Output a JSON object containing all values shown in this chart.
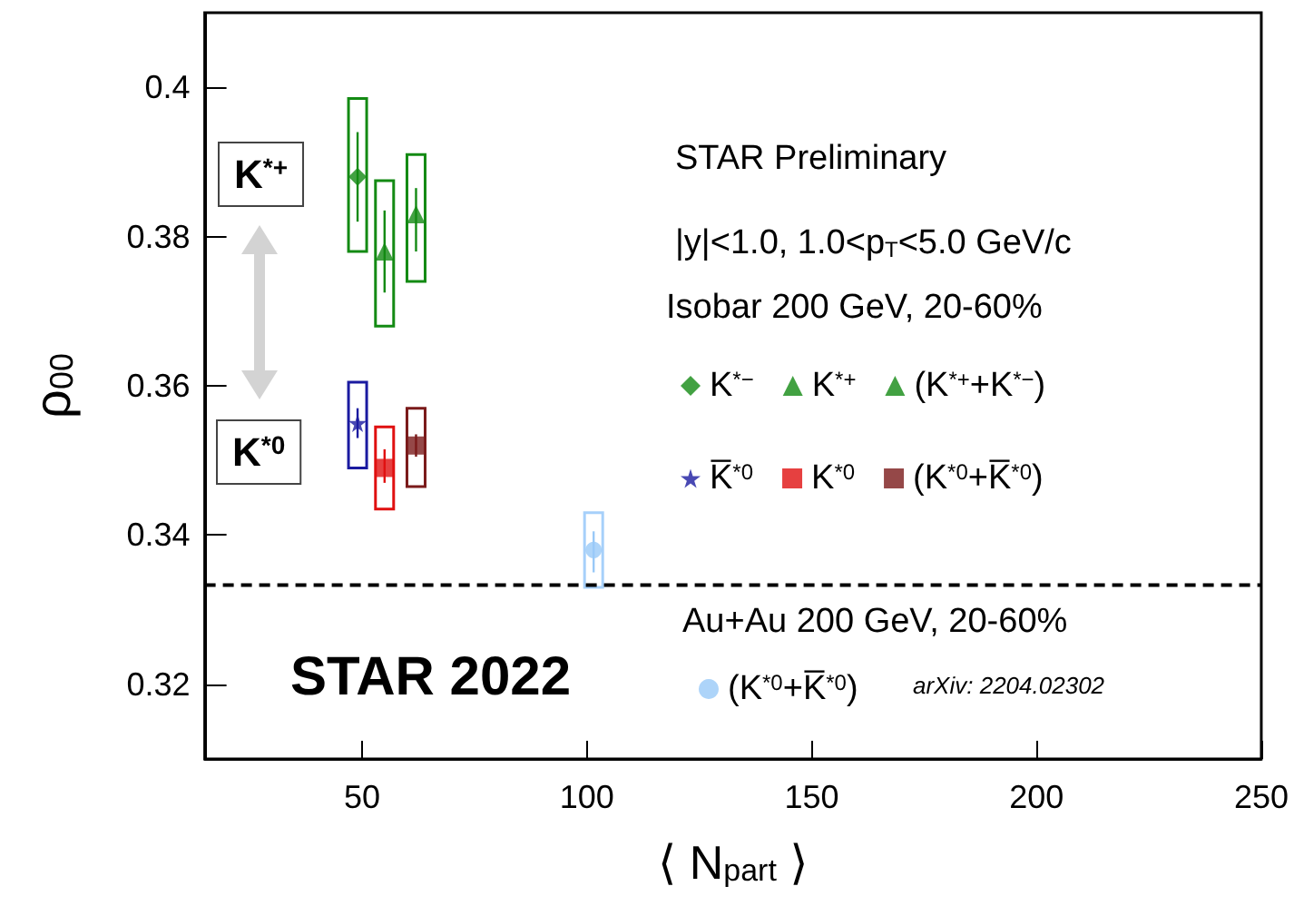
{
  "chart_data": {
    "type": "scatter",
    "xlabel": "⟨ N$_{part}$ ⟩",
    "ylabel": "ρ$_{00}$",
    "xlim": [
      15,
      250
    ],
    "xticks": [
      50,
      100,
      150,
      200,
      250
    ],
    "ylim": [
      0.31,
      0.41
    ],
    "yticks": [
      0.32,
      0.34,
      0.36,
      0.38,
      0.4
    ],
    "grid": false,
    "legend": "right",
    "annotations": [
      "STAR Preliminary",
      "|y|<1.0, 1.0<p$_{T}$<5.0 GeV/c",
      "Isobar 200 GeV, 20-60%",
      "Au+Au 200 GeV, 20-60%",
      "arXiv: 2204.02302",
      "STAR 2022",
      "K$^{*+}$",
      "K$^{*0}$"
    ],
    "ref_lines": [
      {
        "axis": "y",
        "value": 0.3333,
        "color": "#000000",
        "line_style": "dashed"
      }
    ],
    "series": [
      {
        "type": "bar",
        "color": "#138a13",
        "x": [
          49
        ],
        "base": [
          0.378
        ],
        "values": [
          0.0205
        ]
      },
      {
        "type": "bar",
        "color": "#138a13",
        "x": [
          55
        ],
        "base": [
          0.368
        ],
        "values": [
          0.0195
        ]
      },
      {
        "type": "bar",
        "color": "#138a13",
        "x": [
          62
        ],
        "base": [
          0.374
        ],
        "values": [
          0.017
        ]
      },
      {
        "type": "bar",
        "color": "#1a1aa0",
        "x": [
          49
        ],
        "base": [
          0.349
        ],
        "values": [
          0.0115
        ]
      },
      {
        "type": "bar",
        "color": "#e01010",
        "x": [
          55
        ],
        "base": [
          0.3435
        ],
        "values": [
          0.011
        ]
      },
      {
        "type": "bar",
        "color": "#7a1a1a",
        "x": [
          62
        ],
        "base": [
          0.3465
        ],
        "values": [
          0.0105
        ]
      },
      {
        "type": "bar",
        "color": "#a6d0fa",
        "x": [
          101.5
        ],
        "base": [
          0.333
        ],
        "values": [
          0.01
        ]
      },
      {
        "name": "K$^{*−}$",
        "marker": "diamond",
        "color": "#138a13",
        "x": [
          49
        ],
        "values": [
          0.388
        ],
        "errors": [
          [
            0.382,
            0.394
          ]
        ]
      },
      {
        "name": "K$^{*+}$",
        "marker": "triangle",
        "color": "#138a13",
        "x": [
          55
        ],
        "values": [
          0.378
        ],
        "errors": [
          [
            0.3725,
            0.3835
          ]
        ]
      },
      {
        "name": "(K$^{*+}$+K$^{*−}$)",
        "marker": "triangle",
        "color": "#138a13",
        "x": [
          62
        ],
        "values": [
          0.383
        ],
        "errors": [
          [
            0.378,
            0.3865
          ]
        ]
      },
      {
        "name": "K̅$^{*0}$",
        "marker": "star",
        "color": "#1a1aa0",
        "x": [
          49
        ],
        "values": [
          0.355
        ],
        "errors": [
          [
            0.353,
            0.357
          ]
        ]
      },
      {
        "name": "K$^{*0}$",
        "marker": "square",
        "color": "#e01010",
        "x": [
          55
        ],
        "values": [
          0.349
        ],
        "errors": [
          [
            0.347,
            0.3515
          ]
        ]
      },
      {
        "name": "(K$^{*0}$+K̅$^{*0}$)",
        "marker": "square",
        "color": "#7a1a1a",
        "x": [
          62
        ],
        "values": [
          0.352
        ],
        "errors": [
          [
            0.3505,
            0.3535
          ]
        ]
      },
      {
        "name": "(K$^{*0}$+K̅$^{*0}$)",
        "marker": "circle",
        "color": "#99c9f7",
        "x": [
          101.5
        ],
        "values": [
          0.338
        ],
        "errors": [
          [
            0.335,
            0.3405
          ]
        ]
      }
    ]
  }
}
